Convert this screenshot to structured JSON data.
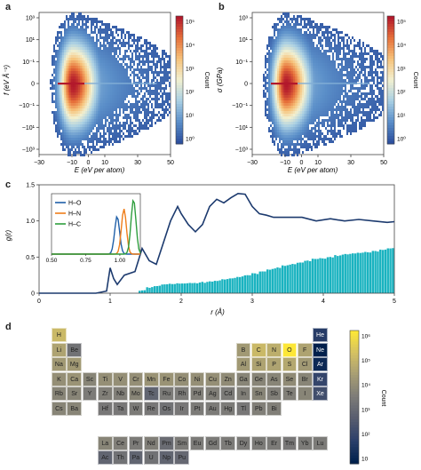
{
  "panels": {
    "a": {
      "letter": "a",
      "xlabel": "E (eV per atom)",
      "ylabel": "f (eV Å⁻¹)",
      "x_ticks": [
        "−30",
        "−10",
        "0",
        "10",
        "30",
        "50"
      ],
      "y_ticks": [
        "10³",
        "10¹",
        "10⁻¹",
        "0",
        "−10⁻¹",
        "−10¹",
        "−10³"
      ],
      "colorbar_label": "Count",
      "colorbar_ticks": [
        "10⁵",
        "10⁴",
        "10³",
        "10²",
        "10¹",
        "10⁰"
      ]
    },
    "b": {
      "letter": "b",
      "xlabel": "E (eV per atom)",
      "ylabel": "σ (GPa)",
      "x_ticks": [
        "−30",
        "−10",
        "0",
        "10",
        "30",
        "50"
      ],
      "y_ticks": [
        "10³",
        "10¹",
        "10⁻¹",
        "0",
        "−10⁻¹",
        "−10¹",
        "−10³"
      ],
      "colorbar_label": "Count",
      "colorbar_ticks": [
        "10⁵",
        "10⁴",
        "10³",
        "10²",
        "10¹",
        "10⁰"
      ]
    },
    "c": {
      "letter": "c",
      "xlabel": "r (Å)",
      "ylabel": "g(r)",
      "x_ticks": [
        "0",
        "1",
        "2",
        "3",
        "4",
        "5"
      ],
      "y_ticks": [
        "0",
        "0.5",
        "1.0",
        "1.5"
      ],
      "inset": {
        "x_ticks": [
          "0.50",
          "0.75",
          "1.00"
        ],
        "legend": [
          {
            "name": "H–O",
            "color": "#1f5fa8"
          },
          {
            "name": "H–N",
            "color": "#ee7d1a"
          },
          {
            "name": "H–C",
            "color": "#2f9e3e"
          }
        ]
      }
    },
    "d": {
      "letter": "d",
      "colorbar_label": "Count",
      "colorbar_ticks": [
        "10⁶",
        "10⁵",
        "10⁴",
        "10³",
        "10²",
        "10"
      ]
    }
  },
  "colors": {
    "line": "#1c3a6e",
    "bars": "#1ab3c0",
    "heat_hot": "#b2182b",
    "heat_cold": "#2c5fa8"
  },
  "chart_data": [
    {
      "type": "heatmap",
      "panel": "a",
      "xlabel": "E (eV per atom)",
      "ylabel": "f (eV Å⁻¹)",
      "xlim": [
        -30,
        50
      ],
      "y_scale": "symlog",
      "colorbar": {
        "label": "Count",
        "scale": "log",
        "range": [
          1,
          100000
        ]
      },
      "peak_x": -10
    },
    {
      "type": "heatmap",
      "panel": "b",
      "xlabel": "E (eV per atom)",
      "ylabel": "σ (GPa)",
      "xlim": [
        -30,
        50
      ],
      "y_scale": "symlog",
      "colorbar": {
        "label": "Count",
        "scale": "log",
        "range": [
          1,
          100000
        ]
      },
      "peak_x": -10
    },
    {
      "type": "line",
      "panel": "c",
      "xlabel": "r (Å)",
      "ylabel": "g(r)",
      "xlim": [
        0,
        5
      ],
      "ylim": [
        0,
        1.5
      ],
      "line_x": [
        0,
        0.8,
        0.95,
        1.0,
        1.05,
        1.1,
        1.2,
        1.35,
        1.45,
        1.55,
        1.65,
        1.75,
        1.85,
        1.95,
        2.0,
        2.1,
        2.2,
        2.3,
        2.4,
        2.5,
        2.6,
        2.7,
        2.8,
        2.9,
        3.0,
        3.1,
        3.2,
        3.3,
        3.5,
        3.7,
        3.9,
        4.1,
        4.3,
        4.5,
        4.7,
        4.9,
        5.0
      ],
      "line_y": [
        0,
        0,
        0.03,
        0.35,
        0.2,
        0.12,
        0.25,
        0.3,
        0.62,
        0.45,
        0.4,
        0.7,
        1.0,
        1.2,
        1.1,
        0.95,
        0.85,
        0.95,
        1.2,
        1.3,
        1.25,
        1.32,
        1.38,
        1.37,
        1.2,
        1.1,
        1.08,
        1.05,
        1.05,
        1.05,
        1.0,
        1.03,
        1.0,
        1.02,
        1.0,
        0.98,
        0.99
      ],
      "bar_start": 1.4,
      "bar_end": 5.0,
      "bar_heights": [
        0.04,
        0.08,
        0.1,
        0.12,
        0.13,
        0.13,
        0.14,
        0.14,
        0.15,
        0.16,
        0.17,
        0.19,
        0.21,
        0.23,
        0.25,
        0.27,
        0.3,
        0.33,
        0.35,
        0.38,
        0.4,
        0.42,
        0.45,
        0.47,
        0.48,
        0.5,
        0.52,
        0.54,
        0.55,
        0.56,
        0.57,
        0.58,
        0.6,
        0.62
      ],
      "inset": {
        "xlim": [
          0.5,
          1.15
        ],
        "series": [
          {
            "name": "H–O",
            "peak": 0.98,
            "height": 1.0
          },
          {
            "name": "H–N",
            "peak": 1.03,
            "height": 1.2
          },
          {
            "name": "H–C",
            "peak": 1.1,
            "height": 1.45
          }
        ]
      }
    },
    {
      "type": "heatmap",
      "panel": "d",
      "colorbar": {
        "label": "Count",
        "scale": "log",
        "range": [
          10,
          1000000
        ]
      },
      "elements": [
        {
          "sym": "H",
          "row": 0,
          "col": 0,
          "level": 0.8
        },
        {
          "sym": "He",
          "row": 0,
          "col": 17,
          "level": 0.15
        },
        {
          "sym": "Li",
          "row": 1,
          "col": 0,
          "level": 0.7
        },
        {
          "sym": "Be",
          "row": 1,
          "col": 1,
          "level": 0.45
        },
        {
          "sym": "B",
          "row": 1,
          "col": 12,
          "level": 0.65
        },
        {
          "sym": "C",
          "row": 1,
          "col": 13,
          "level": 0.8
        },
        {
          "sym": "N",
          "row": 1,
          "col": 14,
          "level": 0.75
        },
        {
          "sym": "O",
          "row": 1,
          "col": 15,
          "level": 1.0
        },
        {
          "sym": "F",
          "row": 1,
          "col": 16,
          "level": 0.7
        },
        {
          "sym": "Ne",
          "row": 1,
          "col": 17,
          "level": 0.0
        },
        {
          "sym": "Na",
          "row": 2,
          "col": 0,
          "level": 0.65
        },
        {
          "sym": "Mg",
          "row": 2,
          "col": 1,
          "level": 0.65
        },
        {
          "sym": "Al",
          "row": 2,
          "col": 12,
          "level": 0.65
        },
        {
          "sym": "Si",
          "row": 2,
          "col": 13,
          "level": 0.7
        },
        {
          "sym": "P",
          "row": 2,
          "col": 14,
          "level": 0.7
        },
        {
          "sym": "S",
          "row": 2,
          "col": 15,
          "level": 0.72
        },
        {
          "sym": "Cl",
          "row": 2,
          "col": 16,
          "level": 0.65
        },
        {
          "sym": "Ar",
          "row": 2,
          "col": 17,
          "level": 0.05
        },
        {
          "sym": "K",
          "row": 3,
          "col": 0,
          "level": 0.6
        },
        {
          "sym": "Ca",
          "row": 3,
          "col": 1,
          "level": 0.62
        },
        {
          "sym": "Sc",
          "row": 3,
          "col": 2,
          "level": 0.55
        },
        {
          "sym": "Ti",
          "row": 3,
          "col": 3,
          "level": 0.6
        },
        {
          "sym": "V",
          "row": 3,
          "col": 4,
          "level": 0.6
        },
        {
          "sym": "Cr",
          "row": 3,
          "col": 5,
          "level": 0.6
        },
        {
          "sym": "Mn",
          "row": 3,
          "col": 6,
          "level": 0.62
        },
        {
          "sym": "Fe",
          "row": 3,
          "col": 7,
          "level": 0.62
        },
        {
          "sym": "Co",
          "row": 3,
          "col": 8,
          "level": 0.6
        },
        {
          "sym": "Ni",
          "row": 3,
          "col": 9,
          "level": 0.6
        },
        {
          "sym": "Cu",
          "row": 3,
          "col": 10,
          "level": 0.6
        },
        {
          "sym": "Zn",
          "row": 3,
          "col": 11,
          "level": 0.58
        },
        {
          "sym": "Ga",
          "row": 3,
          "col": 12,
          "level": 0.55
        },
        {
          "sym": "Ge",
          "row": 3,
          "col": 13,
          "level": 0.55
        },
        {
          "sym": "As",
          "row": 3,
          "col": 14,
          "level": 0.55
        },
        {
          "sym": "Se",
          "row": 3,
          "col": 15,
          "level": 0.58
        },
        {
          "sym": "Br",
          "row": 3,
          "col": 16,
          "level": 0.55
        },
        {
          "sym": "Kr",
          "row": 3,
          "col": 17,
          "level": 0.2
        },
        {
          "sym": "Rb",
          "row": 4,
          "col": 0,
          "level": 0.55
        },
        {
          "sym": "Sr",
          "row": 4,
          "col": 1,
          "level": 0.55
        },
        {
          "sym": "Y",
          "row": 4,
          "col": 2,
          "level": 0.5
        },
        {
          "sym": "Zr",
          "row": 4,
          "col": 3,
          "level": 0.52
        },
        {
          "sym": "Nb",
          "row": 4,
          "col": 4,
          "level": 0.52
        },
        {
          "sym": "Mo",
          "row": 4,
          "col": 5,
          "level": 0.55
        },
        {
          "sym": "Tc",
          "row": 4,
          "col": 6,
          "level": 0.38
        },
        {
          "sym": "Ru",
          "row": 4,
          "col": 7,
          "level": 0.5
        },
        {
          "sym": "Rh",
          "row": 4,
          "col": 8,
          "level": 0.5
        },
        {
          "sym": "Pd",
          "row": 4,
          "col": 9,
          "level": 0.52
        },
        {
          "sym": "Ag",
          "row": 4,
          "col": 10,
          "level": 0.52
        },
        {
          "sym": "Cd",
          "row": 4,
          "col": 11,
          "level": 0.5
        },
        {
          "sym": "In",
          "row": 4,
          "col": 12,
          "level": 0.52
        },
        {
          "sym": "Sn",
          "row": 4,
          "col": 13,
          "level": 0.55
        },
        {
          "sym": "Sb",
          "row": 4,
          "col": 14,
          "level": 0.52
        },
        {
          "sym": "Te",
          "row": 4,
          "col": 15,
          "level": 0.52
        },
        {
          "sym": "I",
          "row": 4,
          "col": 16,
          "level": 0.55
        },
        {
          "sym": "Xe",
          "row": 4,
          "col": 17,
          "level": 0.25
        },
        {
          "sym": "Cs",
          "row": 5,
          "col": 0,
          "level": 0.55
        },
        {
          "sym": "Ba",
          "row": 5,
          "col": 1,
          "level": 0.55
        },
        {
          "sym": "Hf",
          "row": 5,
          "col": 3,
          "level": 0.48
        },
        {
          "sym": "Ta",
          "row": 5,
          "col": 4,
          "level": 0.48
        },
        {
          "sym": "W",
          "row": 5,
          "col": 5,
          "level": 0.5
        },
        {
          "sym": "Re",
          "row": 5,
          "col": 6,
          "level": 0.48
        },
        {
          "sym": "Os",
          "row": 5,
          "col": 7,
          "level": 0.45
        },
        {
          "sym": "Ir",
          "row": 5,
          "col": 8,
          "level": 0.48
        },
        {
          "sym": "Pt",
          "row": 5,
          "col": 9,
          "level": 0.5
        },
        {
          "sym": "Au",
          "row": 5,
          "col": 10,
          "level": 0.5
        },
        {
          "sym": "Hg",
          "row": 5,
          "col": 11,
          "level": 0.5
        },
        {
          "sym": "Tl",
          "row": 5,
          "col": 12,
          "level": 0.48
        },
        {
          "sym": "Pb",
          "row": 5,
          "col": 13,
          "level": 0.52
        },
        {
          "sym": "Bi",
          "row": 5,
          "col": 14,
          "level": 0.52
        },
        {
          "sym": "La",
          "row": 7,
          "col": 3,
          "level": 0.55
        },
        {
          "sym": "Ce",
          "row": 7,
          "col": 4,
          "level": 0.52
        },
        {
          "sym": "Pr",
          "row": 7,
          "col": 5,
          "level": 0.5
        },
        {
          "sym": "Nd",
          "row": 7,
          "col": 6,
          "level": 0.52
        },
        {
          "sym": "Pm",
          "row": 7,
          "col": 7,
          "level": 0.42
        },
        {
          "sym": "Sm",
          "row": 7,
          "col": 8,
          "level": 0.5
        },
        {
          "sym": "Eu",
          "row": 7,
          "col": 9,
          "level": 0.5
        },
        {
          "sym": "Gd",
          "row": 7,
          "col": 10,
          "level": 0.5
        },
        {
          "sym": "Tb",
          "row": 7,
          "col": 11,
          "level": 0.5
        },
        {
          "sym": "Dy",
          "row": 7,
          "col": 12,
          "level": 0.5
        },
        {
          "sym": "Ho",
          "row": 7,
          "col": 13,
          "level": 0.5
        },
        {
          "sym": "Er",
          "row": 7,
          "col": 14,
          "level": 0.5
        },
        {
          "sym": "Tm",
          "row": 7,
          "col": 15,
          "level": 0.48
        },
        {
          "sym": "Yb",
          "row": 7,
          "col": 16,
          "level": 0.5
        },
        {
          "sym": "Lu",
          "row": 7,
          "col": 17,
          "level": 0.5
        },
        {
          "sym": "Ac",
          "row": 8,
          "col": 3,
          "level": 0.38
        },
        {
          "sym": "Th",
          "row": 8,
          "col": 4,
          "level": 0.45
        },
        {
          "sym": "Pa",
          "row": 8,
          "col": 5,
          "level": 0.38
        },
        {
          "sym": "U",
          "row": 8,
          "col": 6,
          "level": 0.45
        },
        {
          "sym": "Np",
          "row": 8,
          "col": 7,
          "level": 0.38
        },
        {
          "sym": "Pu",
          "row": 8,
          "col": 8,
          "level": 0.4
        }
      ]
    }
  ]
}
